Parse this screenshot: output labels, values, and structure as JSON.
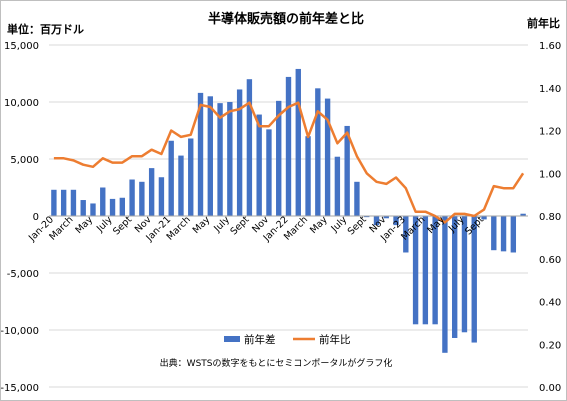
{
  "chart_data": {
    "type": "bar+line",
    "title": "半導体販売額の前年差と比",
    "left_unit_label": "単位：百万ドル",
    "right_unit_label": "前年比",
    "source_note": "出典：WSTSの数字をもとにセミコンポータルがグラフ化",
    "left_axis": {
      "min": -15000,
      "max": 15000,
      "step": 5000,
      "tick_labels": [
        "15,000",
        "10,000",
        "5,000",
        "0",
        "-5,000",
        "-10,000",
        "-15,000"
      ]
    },
    "right_axis": {
      "min": 0.0,
      "max": 1.6,
      "step": 0.2,
      "tick_labels": [
        "1.60",
        "1.40",
        "1.20",
        "1.00",
        "0.80",
        "0.60",
        "0.40",
        "0.20",
        "0.00"
      ]
    },
    "grid": true,
    "legend_position": "bottom-inside",
    "x_tick_labels": [
      "Jan-20",
      "March",
      "May",
      "July",
      "Sept",
      "Nov",
      "Jan-21",
      "March",
      "May",
      "July",
      "Sept",
      "Nov",
      "Jan-22",
      "March",
      "May",
      "July",
      "Sept",
      "Nov",
      "Jan-23",
      "March",
      "May",
      "July",
      "Sept"
    ],
    "x_tick_every": 2,
    "series": [
      {
        "name": "前年差",
        "kind": "bar",
        "color": "#4472c4",
        "values": [
          2300,
          2300,
          2300,
          1400,
          1100,
          2500,
          1500,
          1600,
          3200,
          3000,
          4200,
          3400,
          6600,
          5300,
          6800,
          10800,
          10500,
          9900,
          10000,
          11100,
          12000,
          8900,
          7600,
          10100,
          12200,
          12900,
          7000,
          11200,
          10300,
          5200,
          7900,
          3000,
          -100,
          -800,
          -200,
          -800,
          -3200,
          -9500,
          -9500,
          -9500,
          -12000,
          -10700,
          -10200,
          -11100,
          -300,
          -3000,
          -3100,
          -3200,
          200
        ]
      },
      {
        "name": "前年比",
        "kind": "line",
        "color": "#ed7d31",
        "values": [
          1.07,
          1.07,
          1.06,
          1.04,
          1.03,
          1.07,
          1.05,
          1.05,
          1.08,
          1.08,
          1.11,
          1.09,
          1.2,
          1.17,
          1.18,
          1.32,
          1.31,
          1.26,
          1.29,
          1.3,
          1.33,
          1.22,
          1.22,
          1.27,
          1.31,
          1.33,
          1.17,
          1.29,
          1.25,
          1.14,
          1.19,
          1.08,
          1.0,
          0.96,
          0.95,
          0.98,
          0.93,
          0.82,
          0.82,
          0.8,
          0.77,
          0.81,
          0.81,
          0.8,
          0.83,
          0.94,
          0.93,
          0.93,
          1.0
        ]
      }
    ]
  }
}
